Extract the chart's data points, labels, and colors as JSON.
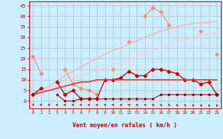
{
  "xlabel": "Vent moyen/en rafales ( km/h )",
  "background_color": "#cceeff",
  "grid_color": "#aacccc",
  "x_ticks": [
    0,
    1,
    2,
    3,
    4,
    5,
    6,
    7,
    8,
    9,
    10,
    11,
    12,
    13,
    14,
    15,
    16,
    17,
    18,
    19,
    20,
    21,
    22,
    23
  ],
  "ylim": [
    -3.5,
    47
  ],
  "xlim": [
    -0.5,
    23.5
  ],
  "y_ticks": [
    0,
    5,
    10,
    15,
    20,
    25,
    30,
    35,
    40,
    45
  ],
  "series": [
    {
      "color": "#ff8888",
      "marker": "D",
      "markersize": 2.5,
      "linewidth": 0.9,
      "y": [
        21,
        13,
        null,
        null,
        15,
        8,
        6,
        5,
        3,
        null,
        15,
        null,
        28,
        null,
        40,
        44,
        42,
        36,
        null,
        null,
        null,
        33,
        null,
        22
      ]
    },
    {
      "color": "#ffaaaa",
      "marker": null,
      "markersize": 0,
      "linewidth": 0.9,
      "y": [
        3,
        5,
        7,
        9.5,
        12,
        14,
        16,
        18,
        20,
        22,
        24,
        25,
        27,
        28.5,
        30,
        31.5,
        33,
        34,
        35,
        36,
        36.5,
        37,
        37,
        37.5
      ]
    },
    {
      "color": "#ffcccc",
      "marker": null,
      "markersize": 0,
      "linewidth": 0.9,
      "y": [
        3,
        4.5,
        6,
        7.5,
        9,
        10.5,
        12,
        13,
        14.5,
        15.5,
        17,
        18,
        19.5,
        21,
        22.5,
        24,
        25,
        26.5,
        28,
        29,
        30,
        31,
        31.5,
        32.5
      ]
    },
    {
      "color": "#cc0000",
      "marker": "P",
      "markersize": 3,
      "linewidth": 1.0,
      "y": [
        3,
        6,
        null,
        9,
        3,
        5,
        1,
        1,
        1,
        10,
        10,
        11,
        14,
        12,
        12,
        15,
        15,
        14,
        13,
        10,
        10,
        8,
        9,
        3
      ]
    },
    {
      "color": "#ff3333",
      "marker": null,
      "markersize": 0,
      "linewidth": 1.3,
      "y": [
        3,
        4,
        5,
        6,
        7,
        8,
        9,
        9,
        10,
        10,
        10,
        10,
        10,
        10,
        10,
        10,
        10,
        10,
        10,
        10,
        10,
        10,
        10,
        10
      ]
    },
    {
      "color": "#990000",
      "marker": "s",
      "markersize": 2,
      "linewidth": 0.8,
      "y": [
        3,
        null,
        null,
        3,
        0,
        0,
        1,
        1,
        1,
        1,
        1,
        1,
        1,
        1,
        1,
        1,
        3,
        3,
        3,
        3,
        3,
        3,
        3,
        3
      ]
    }
  ]
}
